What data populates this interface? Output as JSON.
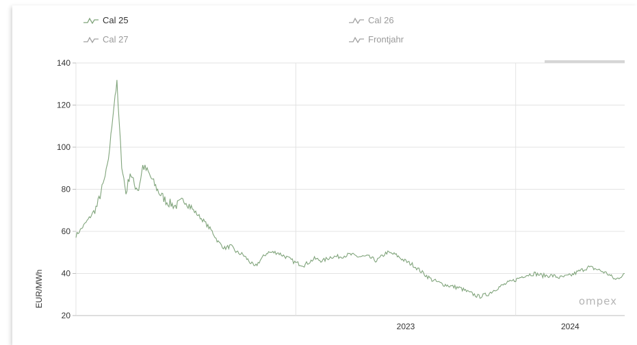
{
  "legend": {
    "items": [
      {
        "label": "Cal 25",
        "active": true,
        "color": "#7fa37a"
      },
      {
        "label": "Cal 26",
        "active": false,
        "color": "#a0a0a0"
      },
      {
        "label": "Cal 27",
        "active": false,
        "color": "#a0a0a0"
      },
      {
        "label": "Frontjahr",
        "active": false,
        "color": "#a0a0a0"
      }
    ]
  },
  "watermark": "ompex",
  "chart_data": {
    "type": "line",
    "ylabel": "EUR/MWh",
    "ylim": [
      20,
      140
    ],
    "yticks": [
      20,
      40,
      60,
      80,
      100,
      120,
      140
    ],
    "x_range": [
      "2022-01-01",
      "2024-06-30"
    ],
    "xticks": [
      "2023",
      "2024"
    ],
    "grid": true,
    "series": [
      {
        "name": "Cal 25",
        "color": "#7fa37a",
        "x": [
          "2022-01-01",
          "2022-01-12",
          "2022-01-25",
          "2022-02-05",
          "2022-02-15",
          "2022-02-22",
          "2022-02-28",
          "2022-03-03",
          "2022-03-07",
          "2022-03-10",
          "2022-03-14",
          "2022-03-18",
          "2022-03-25",
          "2022-04-01",
          "2022-04-08",
          "2022-04-15",
          "2022-04-22",
          "2022-05-01",
          "2022-05-10",
          "2022-05-20",
          "2022-06-01",
          "2022-06-15",
          "2022-07-01",
          "2022-07-15",
          "2022-08-01",
          "2022-08-15",
          "2022-08-25",
          "2022-09-05",
          "2022-09-15",
          "2022-09-25",
          "2022-10-05",
          "2022-10-15",
          "2022-10-25",
          "2022-11-05",
          "2022-11-15",
          "2022-12-01",
          "2022-12-15",
          "2023-01-01",
          "2023-01-15",
          "2023-02-01",
          "2023-02-15",
          "2023-03-01",
          "2023-03-15",
          "2023-04-01",
          "2023-04-15",
          "2023-05-01",
          "2023-05-15",
          "2023-06-01",
          "2023-06-15",
          "2023-07-01",
          "2023-07-15",
          "2023-08-01",
          "2023-08-15",
          "2023-09-01",
          "2023-09-15",
          "2023-10-01",
          "2023-10-15",
          "2023-11-01",
          "2023-11-15",
          "2023-12-01",
          "2023-12-15",
          "2024-01-01",
          "2024-01-15",
          "2024-02-01",
          "2024-02-15",
          "2024-03-01",
          "2024-03-15",
          "2024-04-01",
          "2024-04-15",
          "2024-05-01",
          "2024-05-15",
          "2024-06-01",
          "2024-06-15",
          "2024-06-30"
        ],
        "values": [
          58,
          62,
          67,
          72,
          82,
          90,
          105,
          115,
          125,
          130,
          110,
          92,
          78,
          88,
          82,
          80,
          91,
          88,
          83,
          78,
          74,
          72,
          75,
          70,
          65,
          60,
          55,
          52,
          53,
          50,
          49,
          46,
          43,
          47,
          50,
          50,
          48,
          45,
          44,
          47,
          46,
          48,
          48,
          49,
          48,
          48,
          46,
          50,
          49,
          46,
          44,
          40,
          37,
          35,
          34,
          33,
          31,
          29,
          30,
          33,
          35,
          37,
          39,
          40,
          39,
          39,
          38,
          39,
          41,
          43,
          42,
          40,
          37,
          40
        ]
      }
    ]
  }
}
